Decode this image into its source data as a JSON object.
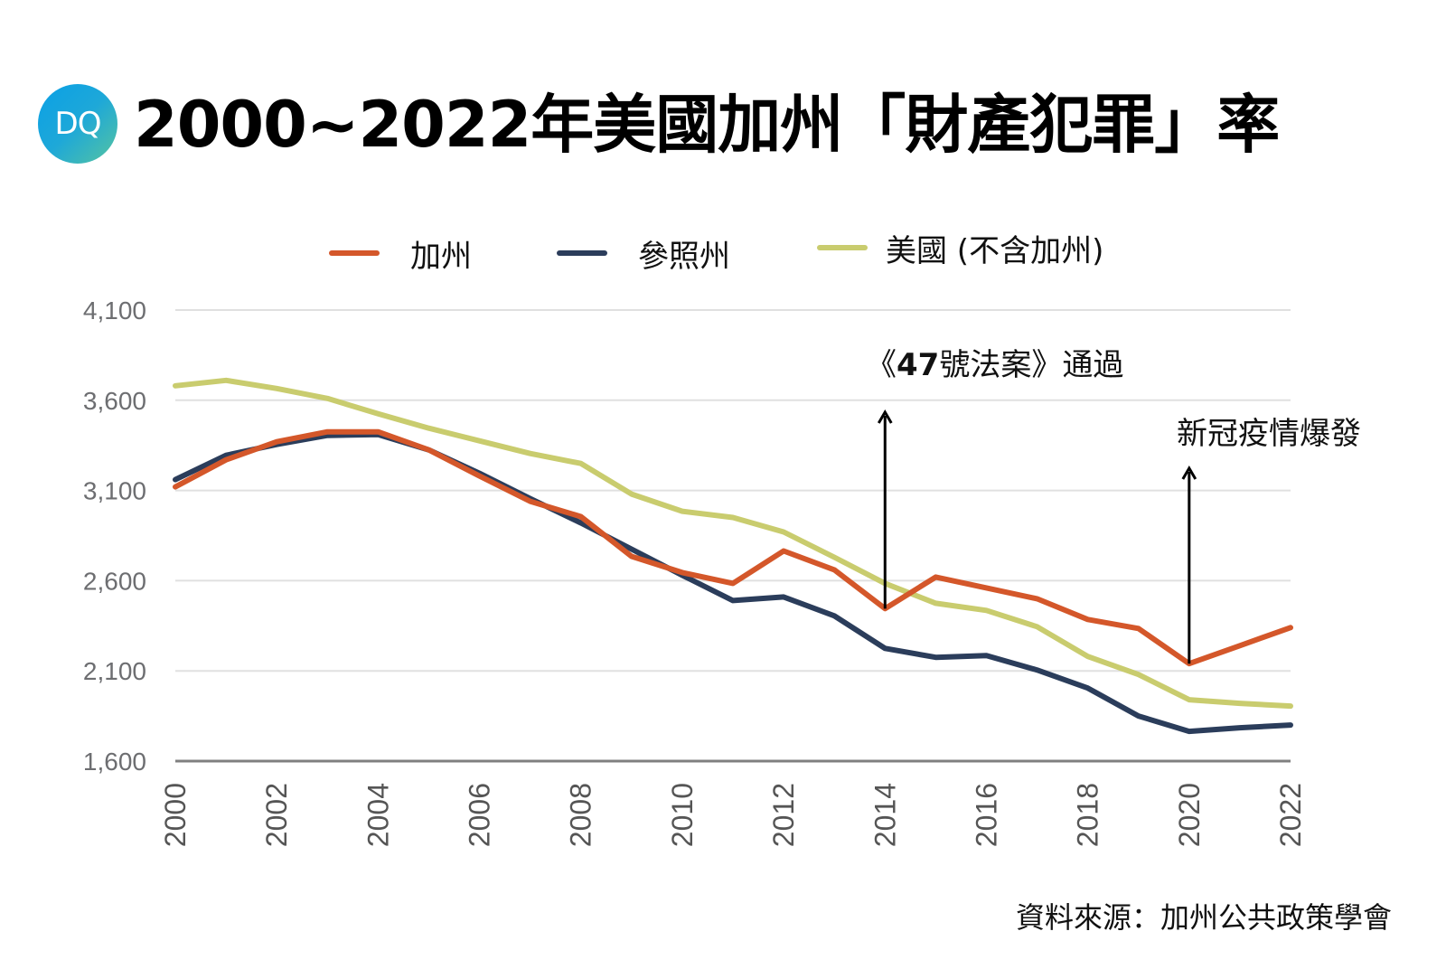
{
  "header": {
    "logo_text": "DQ",
    "title": "2000~2022年美國加州「財產犯罪」率"
  },
  "annotations": [
    {
      "prefix": "《",
      "bold": "47",
      "suffix": "號法案》通過",
      "year": 2014
    },
    {
      "text": "新冠疫情爆發",
      "year": 2020
    }
  ],
  "source": "資料來源：加州公共政策學會",
  "chart_data": {
    "type": "line",
    "title": "2000~2022年美國加州「財產犯罪」率",
    "xlabel": "",
    "ylabel": "",
    "x": [
      2000,
      2001,
      2002,
      2003,
      2004,
      2005,
      2006,
      2007,
      2008,
      2009,
      2010,
      2011,
      2012,
      2013,
      2014,
      2015,
      2016,
      2017,
      2018,
      2019,
      2020,
      2021,
      2022
    ],
    "x_tick_labels": [
      "2000",
      "2002",
      "2004",
      "2006",
      "2008",
      "2010",
      "2012",
      "2014",
      "2016",
      "2018",
      "2020",
      "2022"
    ],
    "y_ticks": [
      1600,
      2100,
      2600,
      3100,
      3600,
      4100
    ],
    "y_tick_labels": [
      "1,600",
      "2,100",
      "2,600",
      "3,100",
      "3,600",
      "4,100"
    ],
    "ylim": [
      1600,
      4100
    ],
    "xlim": [
      2000,
      2022
    ],
    "grid": true,
    "legend_position": "top-center",
    "series": [
      {
        "name": "加州",
        "color": "#d4572a",
        "values": [
          3120,
          3270,
          3370,
          3425,
          3425,
          3325,
          3180,
          3040,
          2955,
          2735,
          2645,
          2585,
          2765,
          2660,
          2445,
          2620,
          2560,
          2500,
          2385,
          2335,
          2140,
          2240,
          2340
        ]
      },
      {
        "name": "參照州",
        "color": "#2b3d5b",
        "values": [
          3160,
          3295,
          3355,
          3405,
          3410,
          3325,
          3195,
          3055,
          2920,
          2775,
          2630,
          2490,
          2510,
          2405,
          2225,
          2175,
          2185,
          2105,
          2005,
          1850,
          1765,
          1785,
          1800
        ]
      },
      {
        "name": "美國 (不含加州)",
        "color": "#c9cc6e",
        "values": [
          3680,
          3710,
          3665,
          3610,
          3525,
          3445,
          3375,
          3305,
          3250,
          3080,
          2985,
          2950,
          2870,
          2730,
          2585,
          2475,
          2435,
          2345,
          2180,
          2080,
          1940,
          1920,
          1905
        ]
      }
    ],
    "annotations": [
      {
        "x": 2014,
        "label": "《47號法案》通過"
      },
      {
        "x": 2020,
        "label": "新冠疫情爆發"
      }
    ]
  }
}
